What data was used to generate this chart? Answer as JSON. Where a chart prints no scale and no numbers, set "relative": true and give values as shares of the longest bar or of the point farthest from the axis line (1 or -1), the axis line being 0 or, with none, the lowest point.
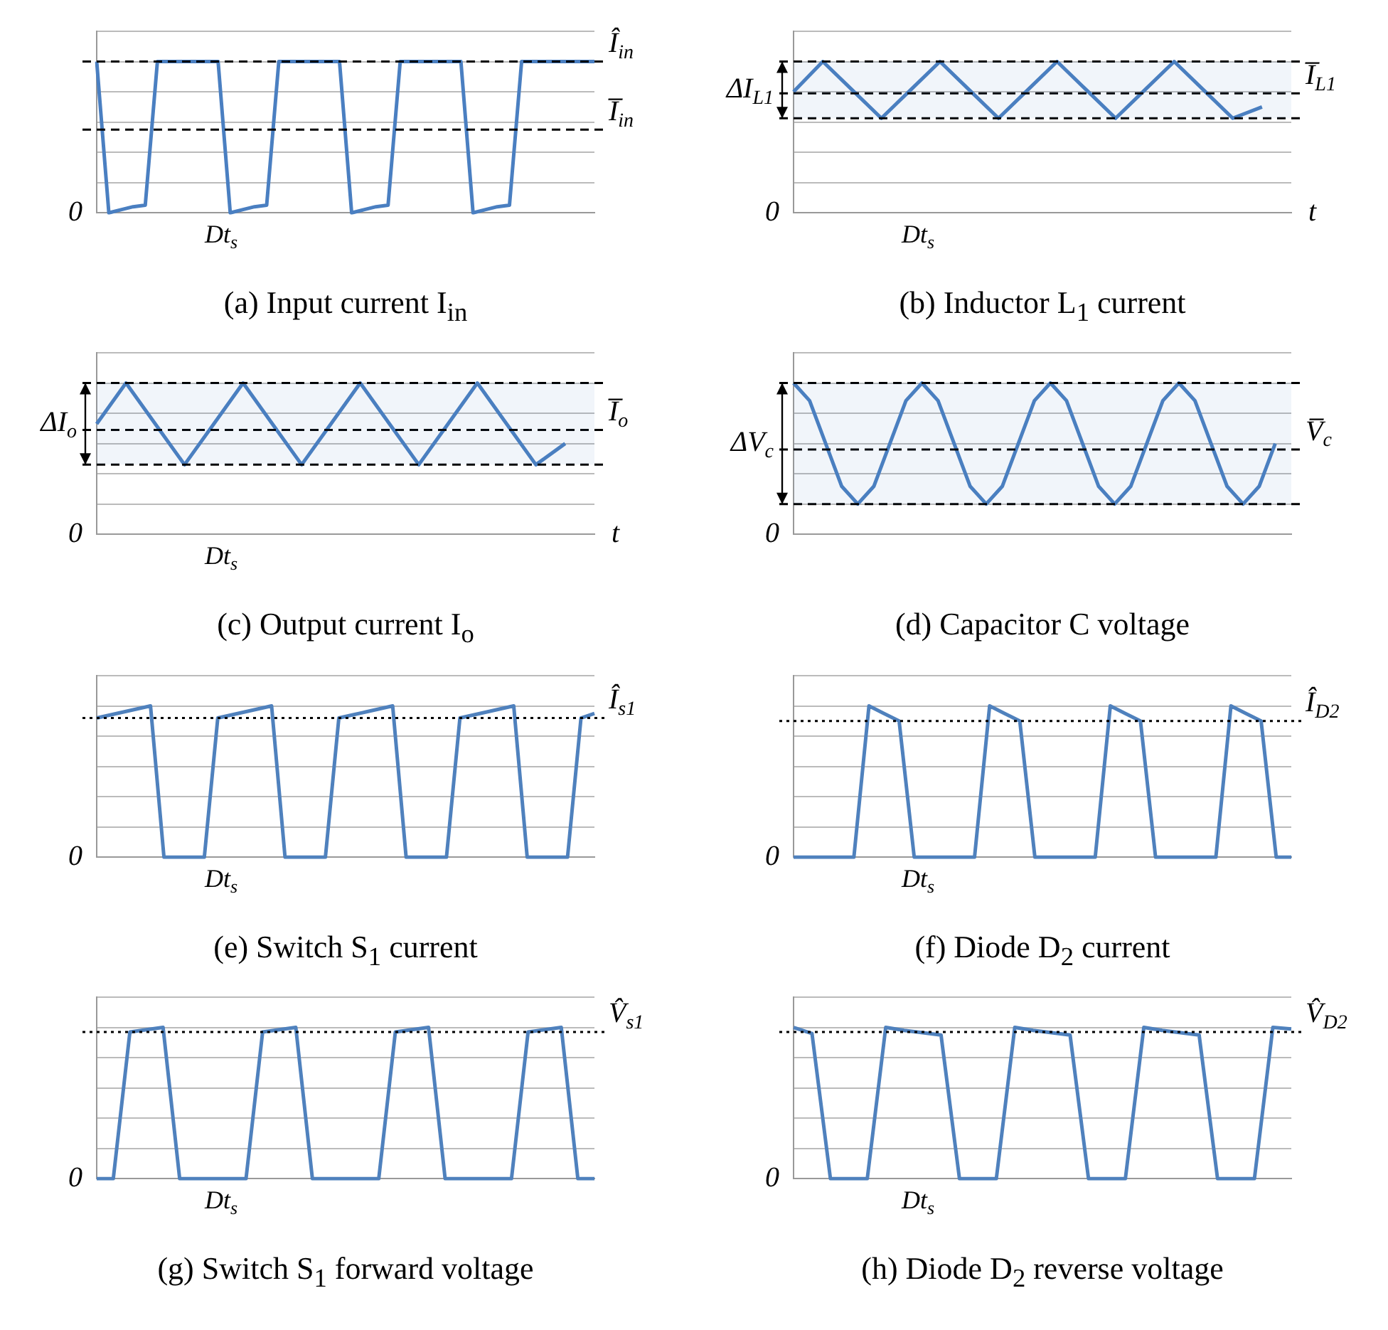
{
  "chart_data": [
    {
      "type": "line",
      "title": "(a)  Input current I$_{in}$",
      "relative": true,
      "grid": "y",
      "color": "#4a7fc1",
      "categories": [
        null,
        null,
        null,
        null,
        null,
        null,
        null,
        null,
        null,
        null,
        null,
        null,
        null,
        null,
        null,
        null,
        null,
        null,
        null,
        null,
        null,
        null,
        null,
        null,
        null,
        null,
        null,
        null,
        null,
        null,
        null,
        null,
        null,
        null,
        null,
        null,
        null,
        null,
        null,
        null,
        null,
        null
      ],
      "values": [
        1,
        0,
        0.02,
        0.04,
        0.05,
        1,
        1,
        1,
        1,
        1,
        1,
        0,
        0.02,
        0.04,
        0.05,
        1,
        1,
        1,
        1,
        1,
        1,
        0,
        0.02,
        0.04,
        0.05,
        1,
        1,
        1,
        1,
        1,
        1,
        0,
        0.02,
        0.04,
        0.05,
        1,
        1,
        1,
        1,
        1,
        1,
        1
      ],
      "ref_lines": [
        {
          "axis": "y",
          "value": 1,
          "label": "Î$_{in}$",
          "line_style": "dashed"
        },
        {
          "axis": "y",
          "value": 0.55,
          "label": "I̅$_{in}$",
          "line_style": "dashed"
        }
      ],
      "annotations": [
        "0",
        "Dt$_{s}$"
      ]
    },
    {
      "type": "line",
      "title": "(b)  Inductor L$_{1}$ current",
      "xlabel": "t",
      "relative": true,
      "grid": "y",
      "color": "#4a7fc1",
      "categories": [
        null,
        null,
        null,
        null,
        null,
        null,
        null,
        null,
        null,
        null,
        null,
        null,
        null,
        null,
        null,
        null,
        null,
        null
      ],
      "values": [
        0.8,
        1,
        0.8125,
        0.625,
        0.8125,
        1,
        0.8125,
        0.625,
        0.8125,
        1,
        0.8125,
        0.625,
        0.8125,
        1,
        0.8125,
        0.625,
        0.7,
        null
      ],
      "ref_lines": [
        {
          "axis": "y",
          "value": 1,
          "line_style": "dashed"
        },
        {
          "axis": "y",
          "value": 0.79,
          "label": "I̅$_{L1}$",
          "line_style": "dashed"
        },
        {
          "axis": "y",
          "value": 0.625,
          "line_style": "dashed"
        }
      ],
      "bands": [
        {
          "axis": "y",
          "from": 0.625,
          "to": 1,
          "label": "ΔI$_{L1}$"
        }
      ],
      "annotations": [
        "0",
        "Dt$_{s}$"
      ]
    },
    {
      "type": "line",
      "title": "(c)  Output current I$_{o}$",
      "xlabel": "t",
      "relative": true,
      "grid": "y",
      "color": "#4a7fc1",
      "categories": [
        null,
        null,
        null,
        null,
        null,
        null,
        null,
        null,
        null,
        null,
        null,
        null,
        null,
        null,
        null,
        null,
        null,
        null
      ],
      "values": [
        0.73,
        1,
        0.73,
        0.46,
        0.73,
        1,
        0.73,
        0.46,
        0.73,
        1,
        0.73,
        0.46,
        0.73,
        1,
        0.73,
        0.46,
        0.6,
        null
      ],
      "ref_lines": [
        {
          "axis": "y",
          "value": 1,
          "line_style": "dashed"
        },
        {
          "axis": "y",
          "value": 0.69,
          "label": "I̅$_{o}$",
          "line_style": "dashed"
        },
        {
          "axis": "y",
          "value": 0.46,
          "line_style": "dashed"
        }
      ],
      "bands": [
        {
          "axis": "y",
          "from": 0.46,
          "to": 1,
          "label": "ΔI$_{o}$"
        }
      ],
      "annotations": [
        "0",
        "Dt$_{s}$"
      ]
    },
    {
      "type": "line",
      "title": "(d)  Capacitor C voltage",
      "relative": true,
      "grid": "y",
      "color": "#4a7fc1",
      "categories": [
        null,
        null,
        null,
        null,
        null,
        null,
        null,
        null,
        null,
        null,
        null,
        null,
        null,
        null,
        null,
        null,
        null,
        null,
        null,
        null,
        null,
        null,
        null,
        null,
        null,
        null,
        null,
        null,
        null,
        null,
        null,
        null
      ],
      "values": [
        1,
        0.883,
        0.6,
        0.317,
        0.2,
        0.317,
        0.6,
        0.883,
        1,
        0.883,
        0.6,
        0.317,
        0.2,
        0.317,
        0.6,
        0.883,
        1,
        0.883,
        0.6,
        0.317,
        0.2,
        0.317,
        0.6,
        0.883,
        1,
        0.883,
        0.6,
        0.317,
        0.2,
        0.317,
        0.6,
        null
      ],
      "ref_lines": [
        {
          "axis": "y",
          "value": 1,
          "line_style": "dashed"
        },
        {
          "axis": "y",
          "value": 0.56,
          "label": "V̅$_{c}$",
          "line_style": "dashed"
        },
        {
          "axis": "y",
          "value": 0.2,
          "line_style": "dashed"
        }
      ],
      "bands": [
        {
          "axis": "y",
          "from": 0.2,
          "to": 1,
          "label": "ΔV$_{c}$"
        }
      ],
      "annotations": [
        "0"
      ]
    },
    {
      "type": "line",
      "title": "(e)  Switch S$_{1}$ current",
      "relative": true,
      "grid": "y",
      "color": "#4f81bd",
      "categories": [
        null,
        null,
        null,
        null,
        null,
        null,
        null,
        null,
        null,
        null,
        null,
        null,
        null,
        null,
        null,
        null,
        null,
        null,
        null,
        null,
        null,
        null,
        null,
        null,
        null,
        null,
        null,
        null,
        null,
        null,
        null,
        null,
        null,
        null,
        null,
        null,
        null,
        null
      ],
      "values": [
        0.92,
        0.94,
        0.96,
        0.98,
        1,
        0,
        0,
        0,
        0,
        0.92,
        0.94,
        0.96,
        0.98,
        1,
        0,
        0,
        0,
        0,
        0.92,
        0.94,
        0.96,
        0.98,
        1,
        0,
        0,
        0,
        0,
        0.92,
        0.94,
        0.96,
        0.98,
        1,
        0,
        0,
        0,
        0,
        0.92,
        0.95
      ],
      "ref_lines": [
        {
          "axis": "y",
          "value": 0.92,
          "label": "Î$_{s1}$",
          "line_style": "dotted"
        }
      ],
      "annotations": [
        "0",
        "Dt$_{s}$"
      ]
    },
    {
      "type": "line",
      "title": "(f)  Diode D$_{2}$ current",
      "relative": true,
      "grid": "y",
      "color": "#4f81bd",
      "categories": [
        null,
        null,
        null,
        null,
        null,
        null,
        null,
        null,
        null,
        null,
        null,
        null,
        null,
        null,
        null,
        null,
        null,
        null,
        null,
        null,
        null,
        null,
        null,
        null,
        null,
        null,
        null,
        null,
        null,
        null,
        null,
        null,
        null,
        null
      ],
      "values": [
        0,
        0,
        0,
        0,
        0,
        1,
        0.95,
        0.9,
        0,
        0,
        0,
        0,
        0,
        1,
        0.95,
        0.9,
        0,
        0,
        0,
        0,
        0,
        1,
        0.95,
        0.9,
        0,
        0,
        0,
        0,
        0,
        1,
        0.95,
        0.9,
        0,
        0
      ],
      "ref_lines": [
        {
          "axis": "y",
          "value": 0.9,
          "label": "Î$_{D2}$",
          "line_style": "dotted"
        }
      ],
      "annotations": [
        "0",
        "Dt$_{s}$"
      ]
    },
    {
      "type": "line",
      "title": "(g)  Switch S$_{1}$ forward voltage",
      "relative": true,
      "grid": "y",
      "color": "#4f81bd",
      "categories": [
        null,
        null,
        null,
        null,
        null,
        null,
        null,
        null,
        null,
        null,
        null,
        null,
        null,
        null,
        null,
        null,
        null,
        null,
        null,
        null,
        null,
        null,
        null,
        null,
        null,
        null,
        null,
        null,
        null,
        null,
        null
      ],
      "values": [
        0,
        0,
        0.97,
        0.985,
        1,
        0,
        0,
        0,
        0,
        0,
        0.97,
        0.985,
        1,
        0,
        0,
        0,
        0,
        0,
        0.97,
        0.985,
        1,
        0,
        0,
        0,
        0,
        0,
        0.97,
        0.985,
        1,
        0,
        0
      ],
      "ref_lines": [
        {
          "axis": "y",
          "value": 0.97,
          "label": "V̂$_{s1}$",
          "line_style": "dotted"
        }
      ],
      "annotations": [
        "0",
        "Dt$_{s}$"
      ]
    },
    {
      "type": "line",
      "title": "(h)  Diode D$_{2}$ reverse voltage",
      "relative": true,
      "grid": "y",
      "color": "#4f81bd",
      "categories": [
        null,
        null,
        null,
        null,
        null,
        null,
        null,
        null,
        null,
        null,
        null,
        null,
        null,
        null,
        null,
        null,
        null,
        null,
        null,
        null,
        null,
        null,
        null,
        null,
        null,
        null,
        null,
        null
      ],
      "values": [
        1,
        0.96,
        0,
        0,
        0,
        1,
        0.98,
        0.965,
        0.95,
        0,
        0,
        0,
        1,
        0.98,
        0.965,
        0.95,
        0,
        0,
        0,
        1,
        0.98,
        0.965,
        0.95,
        0,
        0,
        0,
        1,
        0.99
      ],
      "ref_lines": [
        {
          "axis": "y",
          "value": 0.97,
          "label": "V̂$_{D2}$",
          "line_style": "dotted"
        }
      ],
      "annotations": [
        "0",
        "Dt$_{s}$"
      ]
    }
  ]
}
